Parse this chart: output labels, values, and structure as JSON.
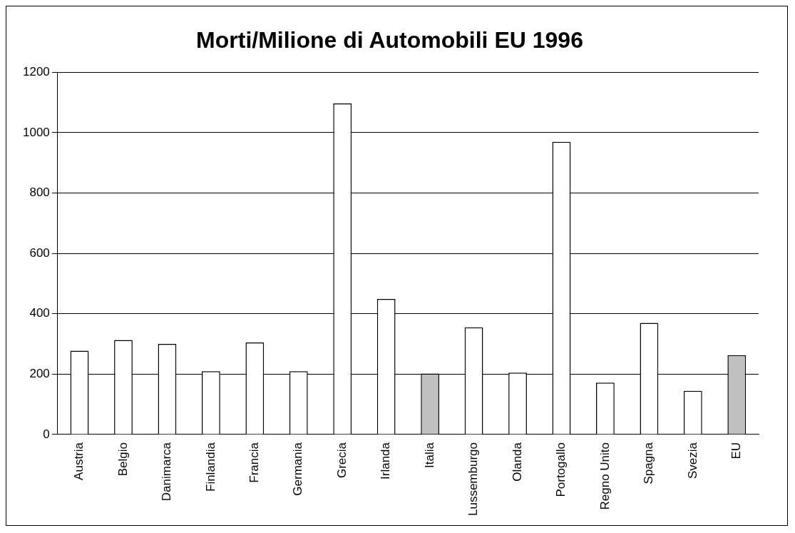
{
  "chart_data": {
    "type": "bar",
    "title": "Morti/Milione di Automobili EU 1996",
    "categories": [
      "Austria",
      "Belgio",
      "Danimarca",
      "Finlandia",
      "Francia",
      "Germania",
      "Grecia",
      "Irlanda",
      "Italia",
      "Lussemburgo",
      "Olanda",
      "Portogallo",
      "Regno Unito",
      "Spagna",
      "Svezia",
      "EU"
    ],
    "values": [
      278,
      313,
      300,
      210,
      305,
      210,
      1097,
      449,
      202,
      355,
      205,
      970,
      172,
      370,
      145,
      263
    ],
    "colors": [
      "#ffffff",
      "#ffffff",
      "#ffffff",
      "#ffffff",
      "#ffffff",
      "#ffffff",
      "#ffffff",
      "#ffffff",
      "#c0c0c0",
      "#ffffff",
      "#ffffff",
      "#ffffff",
      "#ffffff",
      "#ffffff",
      "#ffffff",
      "#c0c0c0"
    ],
    "ylim": [
      0,
      1200
    ],
    "yticks": [
      0,
      200,
      400,
      600,
      800,
      1000,
      1200
    ],
    "grid": "y",
    "legend": false
  }
}
